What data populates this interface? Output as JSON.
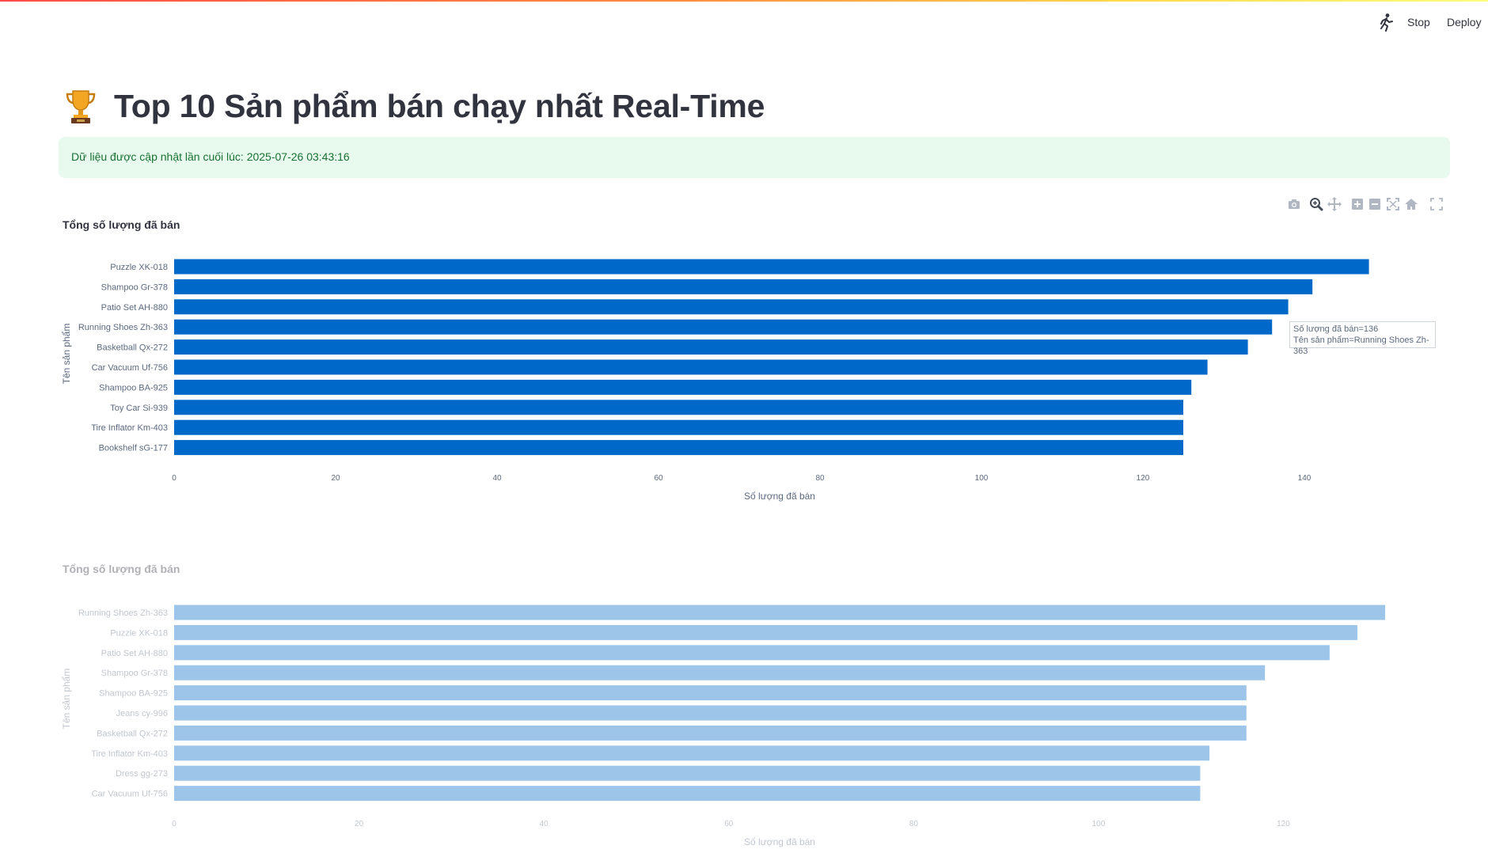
{
  "header": {
    "stop_label": "Stop",
    "deploy_label": "Deploy",
    "running_icon": "running-man-icon"
  },
  "page": {
    "title": "Top 10 Sản phẩm bán chạy nhất Real-Time",
    "title_icon": "trophy-icon"
  },
  "alert": {
    "text": "Dữ liệu được cập nhật lần cuối lúc: 2025-07-26 03:43:16",
    "color": "#177233",
    "background": "#e8f9ee"
  },
  "modebar": {
    "icons": [
      "camera-icon",
      "zoom-icon",
      "pan-icon",
      "zoom-in-icon",
      "zoom-out-icon",
      "autoscale-icon",
      "home-icon",
      "fullscreen-icon"
    ]
  },
  "hover": {
    "line1": "Số lượng đã bán=136",
    "line2": "Tên sản phẩm=Running Shoes Zh-363"
  },
  "chart_data": [
    {
      "type": "bar",
      "orientation": "horizontal",
      "title": "Tổng số lượng đã bán",
      "xlabel": "Số lượng đã bán",
      "ylabel": "Tên sản phẩm",
      "xlim": [
        0,
        150
      ],
      "xticks": [
        0,
        20,
        40,
        60,
        80,
        100,
        120,
        140
      ],
      "categories": [
        "Puzzle XK-018",
        "Shampoo Gr-378",
        "Patio Set AH-880",
        "Running Shoes Zh-363",
        "Basketball Qx-272",
        "Car Vacuum Uf-756",
        "Shampoo BA-925",
        "Toy Car Si-939",
        "Tire Inflator Km-403",
        "Bookshelf sG-177"
      ],
      "values": [
        148,
        141,
        138,
        136,
        133,
        128,
        126,
        125,
        125,
        125
      ],
      "color": "#0068c9",
      "grid": false
    },
    {
      "type": "bar",
      "orientation": "horizontal",
      "title": "Tổng số lượng đã bán",
      "xlabel": "Số lượng đã bán",
      "ylabel": "Tên sản phẩm",
      "xlim": [
        0,
        131
      ],
      "xticks": [
        0,
        20,
        40,
        60,
        80,
        100,
        120
      ],
      "categories": [
        "Running Shoes Zh-363",
        "Puzzle XK-018",
        "Patio Set AH-880",
        "Shampoo Gr-378",
        "Shampoo BA-925",
        "Jeans cy-996",
        "Basketball Qx-272",
        "Tire Inflator Km-403",
        "Dress gg-273",
        "Car Vacuum Uf-756"
      ],
      "values": [
        131,
        128,
        125,
        118,
        116,
        116,
        116,
        112,
        111,
        111
      ],
      "color": "#0068c9",
      "grid": false,
      "faded": true
    }
  ]
}
